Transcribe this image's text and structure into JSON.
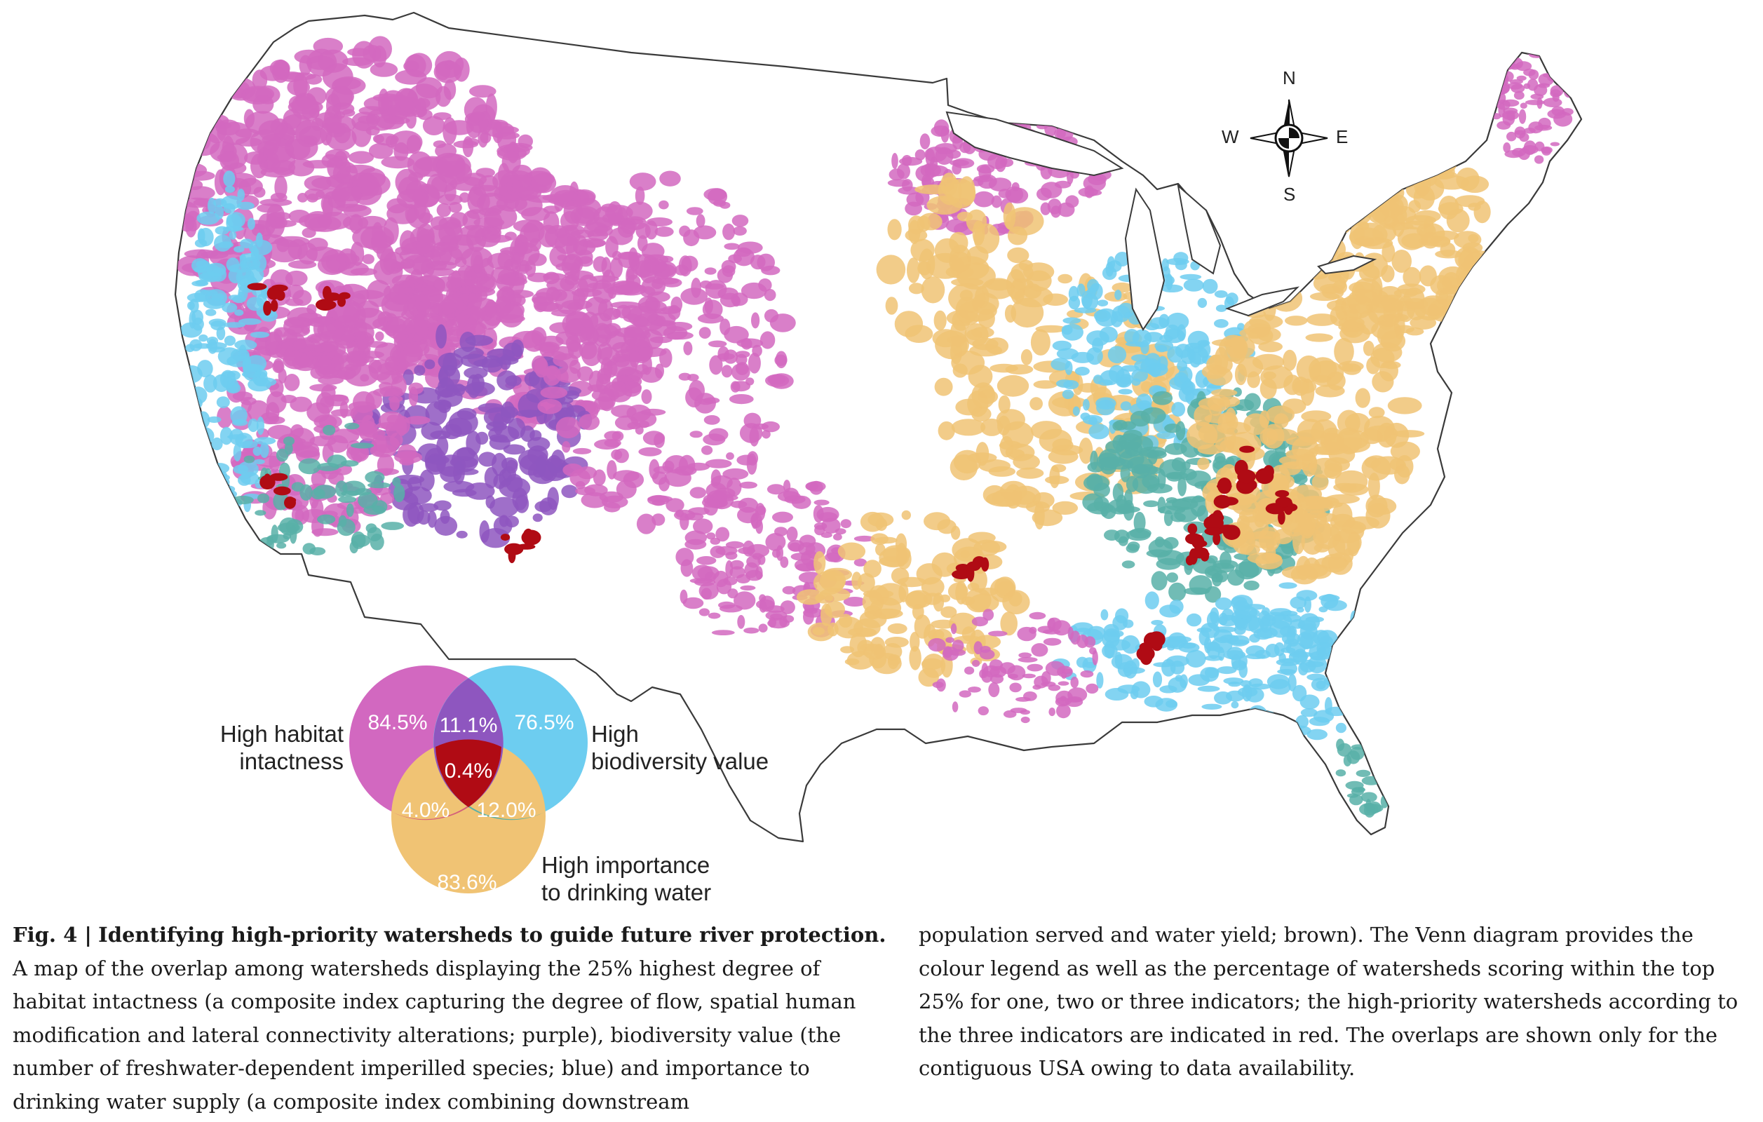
{
  "figure": {
    "label": "Fig. 4 |",
    "title": "Identifying high-priority watersheds to guide future river protection.",
    "caption_col1": "A map of the overlap among watersheds displaying the 25% highest degree of habitat intactness (a composite index capturing the degree of flow, spatial human modification and lateral connectivity alterations; purple), biodiversity value (the number of freshwater-dependent imperilled species; blue) and importance to drinking water supply (a composite index combining downstream",
    "caption_col2": "population served and water yield; brown). The Venn diagram provides the colour legend as well as the percentage of watersheds scoring within the top 25% for one, two or three indicators; the high-priority watersheds according to the three indicators are indicated in red. The overlaps are shown only for the contiguous USA owing to data availability."
  },
  "compass": {
    "north": "N",
    "south": "S",
    "east": "E",
    "west": "W"
  },
  "venn": {
    "habitat": {
      "label_line1": "High habitat",
      "label_line2": "intactness",
      "pct": "84.5%",
      "color": "#d268c0"
    },
    "biodiversity": {
      "label_line1": "High",
      "label_line2": "biodiversity value",
      "pct": "76.5%",
      "color": "#6dcdf0"
    },
    "drinking": {
      "label_line1": "High importance",
      "label_line2": "to drinking water",
      "pct": "83.6%",
      "color": "#f0c374"
    },
    "habitat_biodiversity": {
      "pct": "11.1%",
      "color": "#8e56bf"
    },
    "habitat_drinking": {
      "pct": "4.0%",
      "color": "#d4607a"
    },
    "biodiversity_drinking": {
      "pct": "12.0%",
      "color": "#58b0a8"
    },
    "all_three": {
      "pct": "0.4%",
      "color": "#b00b14"
    }
  },
  "colors": {
    "habitat": "#d268c0",
    "biodiversity": "#6dcdf0",
    "drinking": "#f0c374",
    "habitat_biodiversity": "#8e56bf",
    "biodiversity_drinking": "#58b0a8",
    "all_three": "#b00b14",
    "outline": "#3a3a3a"
  }
}
